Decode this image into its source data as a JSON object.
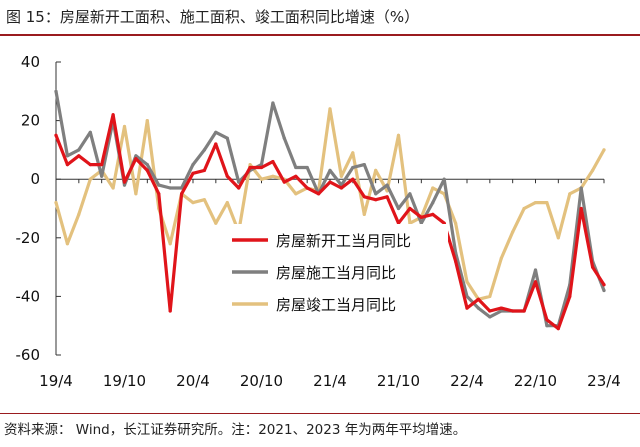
{
  "figure": {
    "title": "图 15：房屋新开工面积、施工面积、竣工面积同比增速（%）",
    "source": "资料来源：    Wind，长江证券研究所。注：2021、2023 年为两年平均增速。"
  },
  "colors": {
    "accent_rule": "#9a1b1f",
    "series": [
      "#e0141a",
      "#7f7f7f",
      "#e3c17e"
    ]
  },
  "chart_data": {
    "type": "line",
    "title": "",
    "xlabel": "",
    "ylabel": "",
    "ylim": [
      -60,
      40
    ],
    "yticks": [
      40,
      20,
      0,
      -20,
      -40,
      -60
    ],
    "grid": false,
    "legend_position": "lower-center",
    "x": [
      "19/4",
      "19/5",
      "19/6",
      "19/7",
      "19/8",
      "19/9",
      "19/10",
      "19/11",
      "19/12",
      "20/1",
      "20/2",
      "20/3",
      "20/4",
      "20/5",
      "20/6",
      "20/7",
      "20/8",
      "20/9",
      "20/10",
      "20/11",
      "20/12",
      "21/1",
      "21/2",
      "21/3",
      "21/4",
      "21/5",
      "21/6",
      "21/7",
      "21/8",
      "21/9",
      "21/10",
      "21/11",
      "21/12",
      "22/1",
      "22/2",
      "22/3",
      "22/4",
      "22/5",
      "22/6",
      "22/7",
      "22/8",
      "22/9",
      "22/10",
      "22/11",
      "22/12",
      "23/1",
      "23/2",
      "23/3",
      "23/4"
    ],
    "x_tick_labels": [
      "19/4",
      "19/10",
      "20/4",
      "20/10",
      "21/4",
      "21/10",
      "22/4",
      "22/10",
      "23/4"
    ],
    "series": [
      {
        "name": "房屋新开工当月同比",
        "values": [
          15,
          5,
          8,
          5,
          5,
          22,
          -1,
          7,
          3,
          -5,
          -45,
          -5,
          2,
          3,
          12,
          1,
          -3,
          4,
          4,
          6,
          -1,
          1,
          -3,
          -5,
          -1,
          -3,
          0,
          -6,
          -7,
          -6,
          -15,
          -10,
          -13,
          -12,
          -15,
          -28,
          -44,
          -41,
          -45,
          -44,
          -45,
          -45,
          -35,
          -48,
          -51,
          -40,
          -10,
          -30,
          -36
        ]
      },
      {
        "name": "房屋施工当月同比",
        "values": [
          30,
          8,
          10,
          16,
          1,
          20,
          -2,
          8,
          5,
          -2,
          -3,
          -3,
          5,
          10,
          16,
          14,
          -1,
          3,
          5,
          26,
          14,
          4,
          4,
          -5,
          3,
          -2,
          4,
          5,
          -5,
          -2,
          -10,
          -5,
          -15,
          -8,
          0,
          -25,
          -40,
          -44,
          -47,
          -45,
          -45,
          -45,
          -31,
          -50,
          -50,
          -36,
          -3,
          -28,
          -38
        ]
      },
      {
        "name": "房屋竣工当月同比",
        "values": [
          -8,
          -22,
          -12,
          0,
          3,
          -3,
          18,
          -5,
          20,
          -10,
          -22,
          -5,
          -8,
          -7,
          -15,
          -8,
          -18,
          5,
          0,
          1,
          0,
          -5,
          -3,
          -4,
          24,
          1,
          9,
          -12,
          3,
          -4,
          15,
          -15,
          -13,
          -3,
          -5,
          -15,
          -35,
          -41,
          -40,
          -27,
          -18,
          -10,
          -8,
          -8,
          -20,
          -5,
          -3,
          3,
          10
        ]
      }
    ]
  }
}
